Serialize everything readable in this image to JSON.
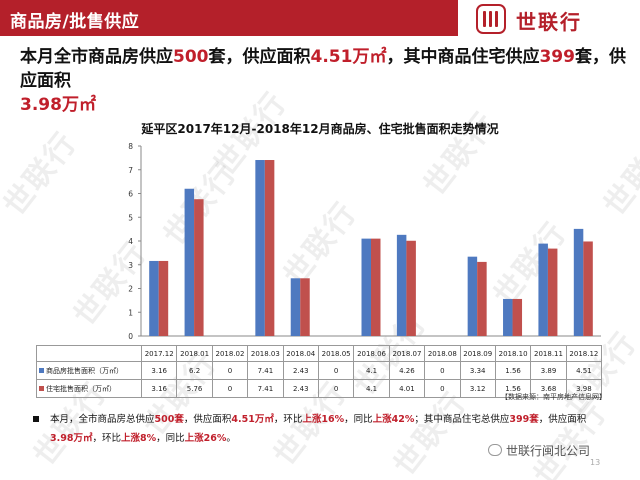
{
  "header": {
    "title": "商品房/批售供应"
  },
  "logo": {
    "text": "世联行"
  },
  "headline": {
    "p1": "本月全市商品房供应",
    "n1": "500",
    "p2": "套，供应面积",
    "n2": "4.51万㎡",
    "p3": "，其中商品住宅供应",
    "n3": "399",
    "p4": "套，供应面积",
    "n4": "3.98万㎡"
  },
  "watermark": {
    "text": "世联行"
  },
  "colors": {
    "brand": "#b4202a",
    "highlight": "#c01f2b",
    "series_a": "#4e79c0",
    "series_b": "#c0504d"
  },
  "chart_data": {
    "type": "bar",
    "title": "延平区2017年12月-2018年12月商品房、住宅批售面积走势情况",
    "categories": [
      "2017.12",
      "2018.01",
      "2018.02",
      "2018.03",
      "2018.04",
      "2018.05",
      "2018.06",
      "2018.07",
      "2018.08",
      "2018.09",
      "2018.10",
      "2018.11",
      "2018.12"
    ],
    "series": [
      {
        "name": "商品房批售面积（万㎡）",
        "values": [
          3.16,
          6.2,
          0,
          7.41,
          2.43,
          0,
          4.1,
          4.26,
          0,
          3.34,
          1.56,
          3.89,
          4.51
        ],
        "display": [
          "3.16",
          "6.2",
          "0",
          "7.41",
          "2.43",
          "0",
          "4.1",
          "4.26",
          "0",
          "3.34",
          "1.56",
          "3.89",
          "4.51"
        ]
      },
      {
        "name": "住宅批售面积（万㎡）",
        "values": [
          3.16,
          5.76,
          0,
          7.41,
          2.43,
          0,
          4.1,
          4.01,
          0,
          3.12,
          1.56,
          3.68,
          3.98
        ],
        "display": [
          "3.16",
          "5.76",
          "0",
          "7.41",
          "2.43",
          "0",
          "4.1",
          "4.01",
          "0",
          "3.12",
          "1.56",
          "3.68",
          "3.98"
        ]
      }
    ],
    "ylim": [
      0,
      8
    ],
    "yticks": [
      "0",
      "1",
      "2",
      "3",
      "4",
      "5",
      "6",
      "7",
      "8"
    ],
    "grid": false,
    "legend": "data-table"
  },
  "source": "【数据来源：南平房地产信息网】",
  "summary": {
    "s1": "本月，全市商品房总供应",
    "b1": "500套",
    "s2": "，供应面积",
    "b2": "4.51万㎡",
    "s3": "，环比",
    "b3": "上涨16%",
    "s4": "，同比",
    "b4": "上涨42%",
    "s5": "；其中商品住宅总供应",
    "b5": "399套",
    "s6": "，供应面积",
    "b6": "3.98万㎡",
    "s7": "，环比",
    "b7": "上涨8%",
    "s8": "，同比",
    "b8": "上涨26%",
    "s9": "。"
  },
  "wechat": {
    "text": "世联行闽北公司"
  },
  "page": {
    "number": "13"
  }
}
